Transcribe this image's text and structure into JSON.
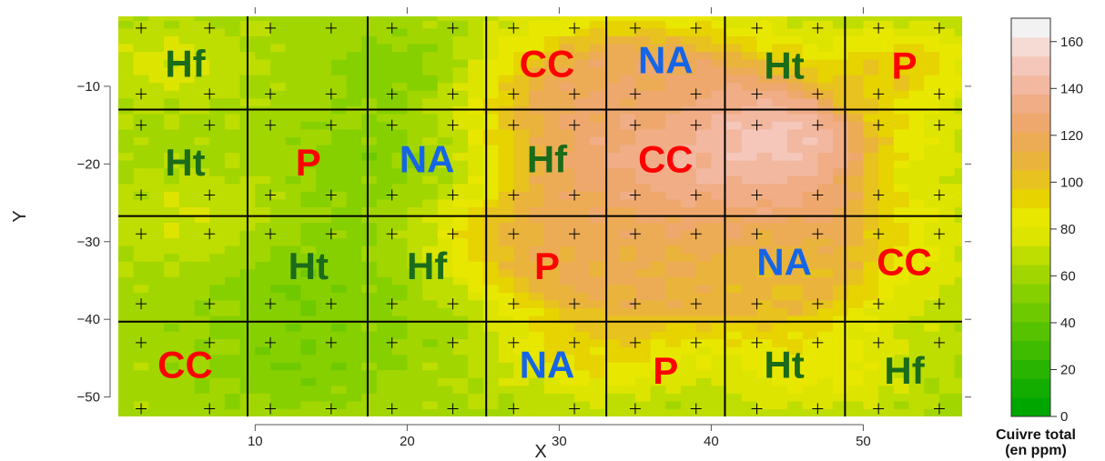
{
  "chart_data": {
    "type": "heatmap",
    "xlabel": "X",
    "ylabel": "Y",
    "xlim": [
      1,
      56.5
    ],
    "ylim": [
      -52.5,
      -1
    ],
    "x_ticks": [
      10,
      20,
      30,
      40,
      50
    ],
    "y_ticks": [
      -10,
      -20,
      -30,
      -40,
      -50
    ],
    "grid_x": [
      9.5,
      17.4,
      25.2,
      33.1,
      40.9,
      48.8
    ],
    "grid_y": [
      -13,
      -26.7,
      -40.3
    ],
    "sample_x": [
      2.5,
      7,
      11,
      15,
      19,
      23,
      27,
      31,
      35,
      39,
      43,
      47,
      51,
      55
    ],
    "sample_y": [
      -2.5,
      -11,
      -15,
      -24,
      -29,
      -38,
      -43,
      -51.5
    ],
    "colorbar": {
      "title_line1": "Cuivre total",
      "title_line2": "(en ppm)",
      "min": 0,
      "max": 170,
      "ticks": [
        0,
        20,
        40,
        60,
        80,
        100,
        120,
        140,
        160
      ],
      "colors": [
        "#00a600",
        "#13ad00",
        "#29b400",
        "#3fbb00",
        "#56c200",
        "#6ec900",
        "#87d000",
        "#a2d600",
        "#bedd00",
        "#dde400",
        "#e8e700",
        "#e6d300",
        "#e8c21f",
        "#eab43c",
        "#ecab55",
        "#eea86d",
        "#f0ad86",
        "#f2b8a0",
        "#f4c7ba",
        "#f6dbd5",
        "#f2f2f2"
      ]
    },
    "hotspots": [
      {
        "x": 43,
        "y": -17,
        "value": 165,
        "r": 4
      },
      {
        "x": 40,
        "y": -19,
        "value": 155,
        "r": 8
      },
      {
        "x": 38,
        "y": -25,
        "value": 125,
        "r": 15
      },
      {
        "x": 35,
        "y": -10,
        "value": 115,
        "r": 9
      },
      {
        "x": 34,
        "y": -31,
        "value": 108,
        "r": 8
      },
      {
        "x": 44,
        "y": -34,
        "value": 95,
        "r": 6
      },
      {
        "x": 53,
        "y": -7,
        "value": 90,
        "r": 5
      },
      {
        "x": 32,
        "y": -45,
        "value": 85,
        "r": 5
      },
      {
        "x": 47,
        "y": -47,
        "value": 80,
        "r": 6
      },
      {
        "x": 7,
        "y": -28,
        "value": 78,
        "r": 6
      },
      {
        "x": 4,
        "y": -7,
        "value": 76,
        "r": 5
      },
      {
        "x": 54,
        "y": -22,
        "value": 56,
        "r": 4
      },
      {
        "x": 20,
        "y": -20,
        "value": 40,
        "r": 7
      },
      {
        "x": 14,
        "y": -33,
        "value": 44,
        "r": 8
      },
      {
        "x": 20,
        "y": -8,
        "value": 46,
        "r": 5
      },
      {
        "x": 13,
        "y": -46,
        "value": 50,
        "r": 6
      },
      {
        "x": 22,
        "y": -40,
        "value": 55,
        "r": 5
      }
    ],
    "background_value": 62,
    "labels": [
      {
        "text": "Hf",
        "x": 5.4,
        "y": -7.5,
        "color": "#1a6b1a"
      },
      {
        "text": "CC",
        "x": 29.2,
        "y": -7.5,
        "color": "#ff0000"
      },
      {
        "text": "NA",
        "x": 37,
        "y": -7,
        "color": "#1565e6"
      },
      {
        "text": "Ht",
        "x": 44.8,
        "y": -7.7,
        "color": "#1a6b1a"
      },
      {
        "text": "P",
        "x": 52.7,
        "y": -7.7,
        "color": "#ff0000"
      },
      {
        "text": "Ht",
        "x": 5.4,
        "y": -20.2,
        "color": "#1a6b1a"
      },
      {
        "text": "P",
        "x": 13.5,
        "y": -20.2,
        "color": "#ff0000"
      },
      {
        "text": "NA",
        "x": 21.3,
        "y": -19.8,
        "color": "#1565e6"
      },
      {
        "text": "Hf",
        "x": 29.2,
        "y": -19.8,
        "color": "#1a6b1a"
      },
      {
        "text": "CC",
        "x": 37,
        "y": -19.8,
        "color": "#ff0000"
      },
      {
        "text": "Ht",
        "x": 13.5,
        "y": -33.5,
        "color": "#1a6b1a"
      },
      {
        "text": "Hf",
        "x": 21.3,
        "y": -33.5,
        "color": "#1a6b1a"
      },
      {
        "text": "P",
        "x": 29.2,
        "y": -33.5,
        "color": "#ff0000"
      },
      {
        "text": "NA",
        "x": 44.8,
        "y": -33,
        "color": "#1565e6"
      },
      {
        "text": "CC",
        "x": 52.7,
        "y": -33,
        "color": "#ff0000"
      },
      {
        "text": "CC",
        "x": 5.4,
        "y": -46.2,
        "color": "#ff0000"
      },
      {
        "text": "NA",
        "x": 29.2,
        "y": -46.2,
        "color": "#1565e6"
      },
      {
        "text": "P",
        "x": 37,
        "y": -47,
        "color": "#ff0000"
      },
      {
        "text": "Ht",
        "x": 44.8,
        "y": -46.2,
        "color": "#1a6b1a"
      },
      {
        "text": "Hf",
        "x": 52.7,
        "y": -47,
        "color": "#1a6b1a"
      }
    ]
  }
}
